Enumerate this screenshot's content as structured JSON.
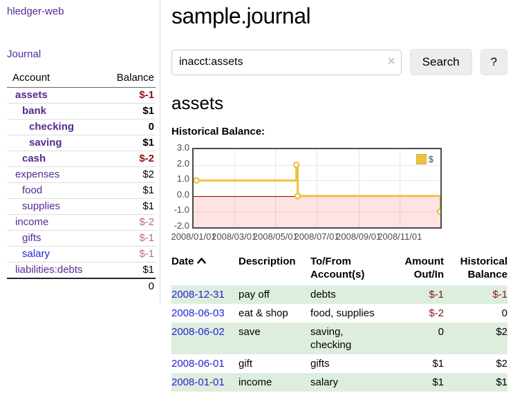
{
  "sidebar": {
    "app_title": "hledger-web",
    "journal_link": "Journal",
    "accounts": {
      "col_account": "Account",
      "col_balance": "Balance",
      "rows": [
        {
          "label": "assets",
          "level": 1,
          "in_query": true,
          "balance": "$-1",
          "balance_tone": "dark-negative"
        },
        {
          "label": "bank",
          "level": 2,
          "in_query": true,
          "balance": "$1",
          "balance_tone": "normal"
        },
        {
          "label": "checking",
          "level": 3,
          "in_query": true,
          "balance": "0",
          "balance_tone": "normal"
        },
        {
          "label": "saving",
          "level": 3,
          "in_query": true,
          "balance": "$1",
          "balance_tone": "normal"
        },
        {
          "label": "cash",
          "level": 2,
          "in_query": true,
          "balance": "$-2",
          "balance_tone": "dark-negative"
        },
        {
          "label": "expenses",
          "level": 1,
          "in_query": false,
          "balance": "$2",
          "balance_tone": "normal"
        },
        {
          "label": "food",
          "level": 2,
          "in_query": false,
          "balance": "$1",
          "balance_tone": "normal"
        },
        {
          "label": "supplies",
          "level": 2,
          "in_query": false,
          "balance": "$1",
          "balance_tone": "normal"
        },
        {
          "label": "income",
          "level": 1,
          "in_query": false,
          "balance": "$-2",
          "balance_tone": "light-negative"
        },
        {
          "label": "gifts",
          "level": 2,
          "in_query": false,
          "balance": "$-1",
          "balance_tone": "light-negative"
        },
        {
          "label": "salary",
          "level": 2,
          "in_query": false,
          "balance": "$-1",
          "balance_tone": "light-negative",
          "unvisited": true
        },
        {
          "label": "liabilities:debts",
          "level": 1,
          "in_query": false,
          "balance": "$1",
          "balance_tone": "normal"
        }
      ],
      "total": "0"
    }
  },
  "main": {
    "title": "sample.journal",
    "search": {
      "value": "inacct:assets",
      "clear_icon": "×",
      "button_label": "Search",
      "help_label": "?"
    },
    "account_heading": "assets",
    "chart_label": "Historical Balance:"
  },
  "chart_data": {
    "type": "line",
    "title": "Historical Balance:",
    "step": true,
    "series": [
      {
        "name": "$",
        "color": "#edc240",
        "points": [
          {
            "x": "2008-01-01",
            "y": 1.0
          },
          {
            "x": "2008-06-01",
            "y": 2.0
          },
          {
            "x": "2008-06-03",
            "y": 0.0
          },
          {
            "x": "2008-12-31",
            "y": -1.0
          }
        ]
      }
    ],
    "xlim": [
      "2008-01-01",
      "2008-12-31"
    ],
    "ylim": [
      -2.0,
      3.0
    ],
    "yticks": [
      3.0,
      2.0,
      1.0,
      0.0,
      -1.0,
      -2.0
    ],
    "ytick_labels": [
      "3.0",
      "2.0",
      "1.0",
      "0.0",
      "-1.0",
      "-2.0"
    ],
    "xticks": [
      "2008-01-01",
      "2008-03-01",
      "2008-05-01",
      "2008-07-01",
      "2008-09-01",
      "2008-11-01"
    ],
    "xtick_labels": [
      "2008/01/01",
      "2008/03/01",
      "2008/05/01",
      "2008/07/01",
      "2008/09/01",
      "2008/11/01"
    ],
    "grid": true,
    "legend_position": "top-right",
    "zero_line_color": "#8b0000",
    "negative_region_color": "rgba(255,0,0,0.11)"
  },
  "register": {
    "headers": {
      "date": "Date",
      "description": "Description",
      "accounts": "To/From Account(s)",
      "amount": "Amount Out/In",
      "balance": "Historical Balance"
    },
    "sort_column": "Date",
    "sort_direction": "ascending",
    "rows": [
      {
        "date": "2008-12-31",
        "description": "pay off",
        "accounts": "debts",
        "amount": "$-1",
        "amount_negative": true,
        "balance": "$-1",
        "balance_negative": true
      },
      {
        "date": "2008-06-03",
        "description": "eat & shop",
        "accounts": "food, supplies",
        "amount": "$-2",
        "amount_negative": true,
        "balance": "0",
        "balance_negative": false
      },
      {
        "date": "2008-06-02",
        "description": "save",
        "accounts": "saving, checking",
        "amount": "0",
        "amount_negative": false,
        "balance": "$2",
        "balance_negative": false
      },
      {
        "date": "2008-06-01",
        "description": "gift",
        "accounts": "gifts",
        "amount": "$1",
        "amount_negative": false,
        "balance": "$2",
        "balance_negative": false
      },
      {
        "date": "2008-01-01",
        "description": "income",
        "accounts": "salary",
        "amount": "$1",
        "amount_negative": false,
        "balance": "$1",
        "balance_negative": false
      }
    ]
  },
  "colors": {
    "link_purple": "#552a93",
    "link_blue": "#2323d4",
    "negative_dark": "#8b1414",
    "negative_light": "#c06b72",
    "row_stripe_green": "#deeede",
    "chart_line": "#edc240",
    "chart_zero_line": "#8b0000",
    "chart_negative_region": "#fbdede",
    "chart_border": "#4a4a4a"
  }
}
